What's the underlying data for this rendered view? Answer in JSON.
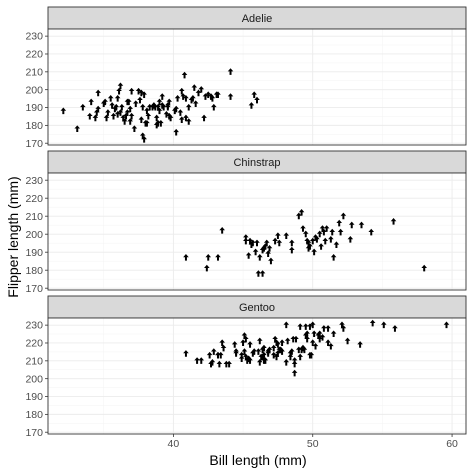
{
  "chart_data": {
    "type": "scatter",
    "xlabel": "Bill length (mm)",
    "ylabel": "Flipper length (mm)",
    "xlim": [
      31,
      61
    ],
    "ylim": [
      169,
      234
    ],
    "x_ticks": [
      40,
      50,
      60
    ],
    "y_ticks": [
      170,
      180,
      190,
      200,
      210,
      220,
      230
    ],
    "grid": true,
    "marker_color": "#000000",
    "strip_color": "#d9d9d9",
    "panels": [
      {
        "name": "Adelie",
        "points": [
          [
            32.1,
            188
          ],
          [
            33.1,
            178
          ],
          [
            33.5,
            190
          ],
          [
            34.0,
            185
          ],
          [
            34.4,
            184
          ],
          [
            34.5,
            187
          ],
          [
            34.6,
            189
          ],
          [
            34.6,
            198
          ],
          [
            35.0,
            192
          ],
          [
            35.1,
            193
          ],
          [
            35.2,
            184
          ],
          [
            35.3,
            187
          ],
          [
            35.5,
            195
          ],
          [
            35.6,
            191
          ],
          [
            35.7,
            185
          ],
          [
            35.9,
            190
          ],
          [
            36.0,
            186
          ],
          [
            36.0,
            195
          ],
          [
            36.2,
            187
          ],
          [
            36.2,
            202
          ],
          [
            36.3,
            190
          ],
          [
            36.4,
            184
          ],
          [
            36.5,
            182
          ],
          [
            36.6,
            185
          ],
          [
            36.7,
            187
          ],
          [
            36.8,
            193
          ],
          [
            36.9,
            189
          ],
          [
            37.0,
            185
          ],
          [
            37.2,
            178
          ],
          [
            37.3,
            192
          ],
          [
            37.5,
            199
          ],
          [
            37.6,
            194
          ],
          [
            37.7,
            183
          ],
          [
            37.8,
            174
          ],
          [
            37.9,
            172
          ],
          [
            38.0,
            181
          ],
          [
            38.1,
            188
          ],
          [
            38.2,
            185
          ],
          [
            38.3,
            190
          ],
          [
            38.5,
            190
          ],
          [
            38.6,
            191
          ],
          [
            38.7,
            190
          ],
          [
            38.8,
            184
          ],
          [
            38.9,
            190
          ],
          [
            39.0,
            193
          ],
          [
            39.1,
            181
          ],
          [
            39.2,
            196
          ],
          [
            39.3,
            190
          ],
          [
            39.5,
            186
          ],
          [
            39.6,
            190
          ],
          [
            39.7,
            193
          ],
          [
            39.8,
            184
          ],
          [
            40.1,
            188
          ],
          [
            40.2,
            189
          ],
          [
            40.3,
            195
          ],
          [
            40.5,
            187
          ],
          [
            40.6,
            183
          ],
          [
            40.7,
            196
          ],
          [
            40.8,
            208
          ],
          [
            40.9,
            195
          ],
          [
            41.1,
            190
          ],
          [
            41.4,
            195
          ],
          [
            41.5,
            201
          ],
          [
            41.6,
            192
          ],
          [
            41.8,
            198
          ],
          [
            42.0,
            200
          ],
          [
            42.2,
            184
          ],
          [
            42.3,
            196
          ],
          [
            42.5,
            197
          ],
          [
            42.7,
            196
          ],
          [
            42.9,
            190
          ],
          [
            43.2,
            197
          ],
          [
            44.1,
            196
          ],
          [
            44.1,
            210
          ],
          [
            45.6,
            191
          ],
          [
            45.8,
            197
          ],
          [
            46.0,
            194
          ],
          [
            36.1,
            199
          ],
          [
            36.7,
            193
          ],
          [
            37.9,
            197
          ],
          [
            38.8,
            180
          ],
          [
            39.0,
            188
          ],
          [
            39.6,
            191
          ],
          [
            40.6,
            199
          ],
          [
            41.1,
            182
          ],
          [
            34.1,
            193
          ],
          [
            35.8,
            189
          ],
          [
            37.7,
            198
          ],
          [
            38.1,
            181
          ],
          [
            39.7,
            185
          ],
          [
            40.9,
            184
          ],
          [
            42.8,
            195
          ],
          [
            37.0,
            199
          ],
          [
            37.8,
            190
          ],
          [
            38.9,
            181
          ],
          [
            40.2,
            176
          ],
          [
            41.3,
            194
          ],
          [
            43.1,
            197
          ],
          [
            36.9,
            182
          ],
          [
            39.2,
            191
          ]
        ]
      },
      {
        "name": "Chinstrap",
        "points": [
          [
            40.9,
            187
          ],
          [
            42.4,
            181
          ],
          [
            42.5,
            187
          ],
          [
            43.2,
            187
          ],
          [
            43.5,
            202
          ],
          [
            45.2,
            198
          ],
          [
            45.2,
            196
          ],
          [
            45.4,
            188
          ],
          [
            45.5,
            196
          ],
          [
            45.6,
            194
          ],
          [
            45.7,
            195
          ],
          [
            45.9,
            190
          ],
          [
            46.0,
            195
          ],
          [
            46.1,
            178
          ],
          [
            46.2,
            187
          ],
          [
            46.4,
            191
          ],
          [
            46.5,
            192
          ],
          [
            46.6,
            193
          ],
          [
            46.7,
            195
          ],
          [
            46.8,
            189
          ],
          [
            46.9,
            192
          ],
          [
            47.0,
            185
          ],
          [
            47.5,
            199
          ],
          [
            47.6,
            195
          ],
          [
            48.1,
            199
          ],
          [
            48.5,
            191
          ],
          [
            49.0,
            210
          ],
          [
            49.2,
            212
          ],
          [
            49.3,
            203
          ],
          [
            49.5,
            200
          ],
          [
            49.6,
            196
          ],
          [
            49.7,
            195
          ],
          [
            49.8,
            193
          ],
          [
            50.1,
            190
          ],
          [
            50.2,
            198
          ],
          [
            50.3,
            197
          ],
          [
            50.5,
            200
          ],
          [
            50.6,
            193
          ],
          [
            50.7,
            203
          ],
          [
            50.8,
            201
          ],
          [
            50.9,
            196
          ],
          [
            51.0,
            203
          ],
          [
            51.3,
            197
          ],
          [
            51.4,
            201
          ],
          [
            51.5,
            187
          ],
          [
            51.7,
            194
          ],
          [
            52.0,
            201
          ],
          [
            52.2,
            210
          ],
          [
            52.7,
            197
          ],
          [
            52.8,
            205
          ],
          [
            53.5,
            205
          ],
          [
            54.2,
            201
          ],
          [
            55.8,
            207
          ],
          [
            58.0,
            181
          ],
          [
            51.9,
            206
          ],
          [
            50.0,
            196
          ],
          [
            49.7,
            192
          ],
          [
            48.5,
            195
          ],
          [
            47.3,
            196
          ],
          [
            46.4,
            178
          ]
        ]
      },
      {
        "name": "Gentoo",
        "points": [
          [
            40.9,
            214
          ],
          [
            41.7,
            210
          ],
          [
            42.0,
            210
          ],
          [
            42.6,
            213
          ],
          [
            42.7,
            208
          ],
          [
            42.8,
            209
          ],
          [
            42.9,
            215
          ],
          [
            43.2,
            213
          ],
          [
            43.3,
            208
          ],
          [
            43.4,
            213
          ],
          [
            43.5,
            220
          ],
          [
            43.6,
            217
          ],
          [
            43.8,
            208
          ],
          [
            44.0,
            208
          ],
          [
            44.4,
            219
          ],
          [
            44.5,
            214
          ],
          [
            44.9,
            213
          ],
          [
            45.0,
            220
          ],
          [
            45.1,
            215
          ],
          [
            45.2,
            212
          ],
          [
            45.3,
            210
          ],
          [
            45.4,
            211
          ],
          [
            45.5,
            210
          ],
          [
            45.7,
            214
          ],
          [
            45.8,
            215
          ],
          [
            46.1,
            215
          ],
          [
            46.2,
            209
          ],
          [
            46.3,
            212
          ],
          [
            46.4,
            216
          ],
          [
            46.5,
            210
          ],
          [
            46.6,
            210
          ],
          [
            46.8,
            215
          ],
          [
            46.9,
            216
          ],
          [
            47.2,
            213
          ],
          [
            47.3,
            222
          ],
          [
            47.4,
            212
          ],
          [
            47.5,
            214
          ],
          [
            47.6,
            216
          ],
          [
            47.7,
            216
          ],
          [
            47.8,
            215
          ],
          [
            48.1,
            209
          ],
          [
            48.2,
            221
          ],
          [
            48.4,
            214
          ],
          [
            48.5,
            215
          ],
          [
            48.6,
            222
          ],
          [
            48.7,
            208
          ],
          [
            48.8,
            222
          ],
          [
            49.0,
            216
          ],
          [
            49.1,
            212
          ],
          [
            49.2,
            216
          ],
          [
            49.3,
            217
          ],
          [
            49.4,
            216
          ],
          [
            49.5,
            224
          ],
          [
            49.6,
            225
          ],
          [
            49.8,
            229
          ],
          [
            49.9,
            213
          ],
          [
            50.0,
            220
          ],
          [
            50.1,
            225
          ],
          [
            50.2,
            218
          ],
          [
            50.4,
            224
          ],
          [
            50.5,
            222
          ],
          [
            50.7,
            223
          ],
          [
            50.8,
            228
          ],
          [
            51.1,
            220
          ],
          [
            51.3,
            218
          ],
          [
            51.5,
            225
          ],
          [
            52.1,
            230
          ],
          [
            52.2,
            228
          ],
          [
            52.5,
            221
          ],
          [
            53.4,
            219
          ],
          [
            54.3,
            231
          ],
          [
            55.1,
            230
          ],
          [
            55.9,
            228
          ],
          [
            59.6,
            230
          ],
          [
            46.5,
            217
          ],
          [
            45.2,
            222
          ],
          [
            47.5,
            219
          ],
          [
            49.1,
            229
          ],
          [
            48.4,
            212
          ],
          [
            49.8,
            213
          ],
          [
            44.9,
            211
          ],
          [
            46.2,
            221
          ],
          [
            45.1,
            224
          ],
          [
            46.5,
            213
          ],
          [
            50.0,
            230
          ],
          [
            49.5,
            229
          ],
          [
            48.7,
            203
          ],
          [
            43.2,
            213
          ],
          [
            47.4,
            220
          ],
          [
            46.8,
            214
          ],
          [
            48.1,
            230
          ],
          [
            50.5,
            225
          ],
          [
            51.1,
            228
          ],
          [
            45.5,
            219
          ],
          [
            44.5,
            215
          ],
          [
            47.2,
            217
          ],
          [
            49.6,
            222
          ],
          [
            46.4,
            212
          ],
          [
            48.7,
            210
          ],
          [
            47.8,
            220
          ]
        ]
      }
    ]
  }
}
